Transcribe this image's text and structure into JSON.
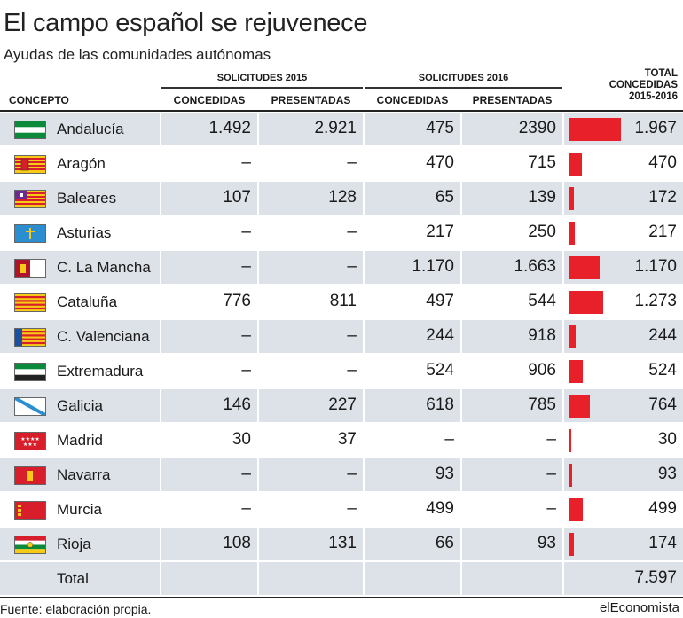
{
  "title": "El campo español se rejuvenece",
  "subtitle": "Ayudas de las comunidades autónomas",
  "headers": {
    "concepto": "CONCEPTO",
    "group_2015": "SOLICITUDES 2015",
    "group_2016": "SOLICITUDES 2016",
    "concedidas": "CONCEDIDAS",
    "presentadas": "PRESENTADAS",
    "total_line1": "TOTAL",
    "total_line2": "CONCEDIDAS",
    "total_line3": "2015-2016"
  },
  "chart_data": {
    "type": "table",
    "columns": [
      "CONCEPTO",
      "CONCEDIDAS 2015",
      "PRESENTADAS 2015",
      "CONCEDIDAS 2016",
      "PRESENTADAS 2016",
      "TOTAL CONCEDIDAS 2015-2016"
    ],
    "rows": [
      {
        "name": "Andalucía",
        "flag": "andalucia-flag",
        "c2015": "1.492",
        "p2015": "2.921",
        "c2016": "475",
        "p2016": "2390",
        "total": "1.967",
        "total_value": 1967
      },
      {
        "name": "Aragón",
        "flag": "aragon-flag",
        "c2015": "–",
        "p2015": "–",
        "c2016": "470",
        "p2016": "715",
        "total": "470",
        "total_value": 470
      },
      {
        "name": "Baleares",
        "flag": "baleares-flag",
        "c2015": "107",
        "p2015": "128",
        "c2016": "65",
        "p2016": "139",
        "total": "172",
        "total_value": 172
      },
      {
        "name": "Asturias",
        "flag": "asturias-flag",
        "c2015": "–",
        "p2015": "–",
        "c2016": "217",
        "p2016": "250",
        "total": "217",
        "total_value": 217
      },
      {
        "name": "C. La Mancha",
        "flag": "castilla-la-mancha-flag",
        "c2015": "–",
        "p2015": "–",
        "c2016": "1.170",
        "p2016": "1.663",
        "total": "1.170",
        "total_value": 1170
      },
      {
        "name": "Cataluña",
        "flag": "cataluna-flag",
        "c2015": "776",
        "p2015": "811",
        "c2016": "497",
        "p2016": "544",
        "total": "1.273",
        "total_value": 1273
      },
      {
        "name": "C. Valenciana",
        "flag": "valencia-flag",
        "c2015": "–",
        "p2015": "–",
        "c2016": "244",
        "p2016": "918",
        "total": "244",
        "total_value": 244
      },
      {
        "name": "Extremadura",
        "flag": "extremadura-flag",
        "c2015": "–",
        "p2015": "–",
        "c2016": "524",
        "p2016": "906",
        "total": "524",
        "total_value": 524
      },
      {
        "name": "Galicia",
        "flag": "galicia-flag",
        "c2015": "146",
        "p2015": "227",
        "c2016": "618",
        "p2016": "785",
        "total": "764",
        "total_value": 764
      },
      {
        "name": "Madrid",
        "flag": "madrid-flag",
        "c2015": "30",
        "p2015": "37",
        "c2016": "–",
        "p2016": "–",
        "total": "30",
        "total_value": 30
      },
      {
        "name": "Navarra",
        "flag": "navarra-flag",
        "c2015": "–",
        "p2015": "–",
        "c2016": "93",
        "p2016": "–",
        "total": "93",
        "total_value": 93
      },
      {
        "name": "Murcia",
        "flag": "murcia-flag",
        "c2015": "–",
        "p2015": "–",
        "c2016": "499",
        "p2016": "–",
        "total": "499",
        "total_value": 499
      },
      {
        "name": "Rioja",
        "flag": "rioja-flag",
        "c2015": "108",
        "p2015": "131",
        "c2016": "66",
        "p2016": "93",
        "total": "174",
        "total_value": 174
      }
    ],
    "total_row": {
      "name": "Total",
      "total": "7.597"
    },
    "bar_color": "#e8202a"
  },
  "source": "Fuente: elaboración propia.",
  "brand": "elEconomista"
}
